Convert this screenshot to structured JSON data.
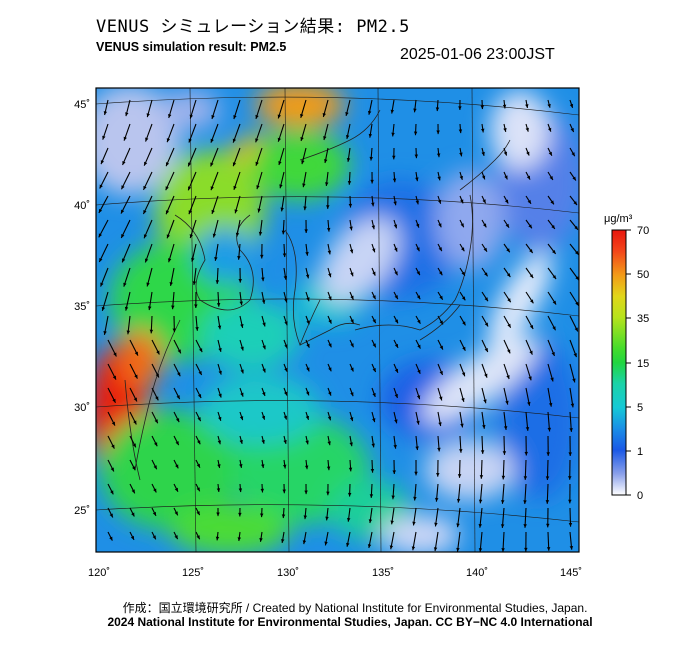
{
  "header": {
    "title_jp": "VENUS シミュレーション結果: PM2.5",
    "title_en": "VENUS simulation result: PM2.5",
    "timestamp": "2025-01-06 23:00JST"
  },
  "map": {
    "lon_ticks": [
      "120˚",
      "125˚",
      "130˚",
      "135˚",
      "140˚",
      "145˚"
    ],
    "lat_ticks": [
      "45˚",
      "40˚",
      "35˚",
      "30˚",
      "25˚"
    ],
    "lon_range": [
      120,
      145
    ],
    "lat_range": [
      23,
      46
    ]
  },
  "legend": {
    "unit": "μg/m³",
    "levels": [
      "70",
      "50",
      "35",
      "15",
      "5",
      "1",
      "0"
    ],
    "colors": {
      "70": "#e8160e",
      "50": "#f39b19",
      "35": "#b6e31c",
      "15": "#21d640",
      "5": "#16c9d6",
      "1": "#1a58e6",
      "0": "#ffffff"
    }
  },
  "credits": {
    "line1": "作成：国立環境研究所 / Created by National Institute for Environmental Studies, Japan.",
    "line2": "2024 National Institute for Environmental Studies, Japan. CC BY−NC 4.0 International"
  }
}
